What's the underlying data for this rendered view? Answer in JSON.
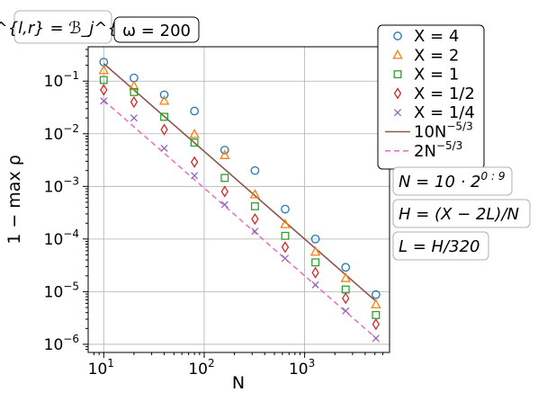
{
  "chart_data": {
    "type": "scatter",
    "xscale": "log",
    "yscale": "log",
    "xlim": [
      7,
      7000
    ],
    "ylim": [
      7e-07,
      0.45
    ],
    "grid": true,
    "xlabel": "N",
    "ylabel": "1 − max ρ",
    "x_ticks": [
      {
        "value": 10,
        "base": "10",
        "exp": "1"
      },
      {
        "value": 100,
        "base": "10",
        "exp": "2"
      },
      {
        "value": 1000,
        "base": "10",
        "exp": "3"
      }
    ],
    "y_ticks": [
      {
        "value": 1e-06,
        "base": "10",
        "exp": "−6"
      },
      {
        "value": 1e-05,
        "base": "10",
        "exp": "−5"
      },
      {
        "value": 0.0001,
        "base": "10",
        "exp": "−4"
      },
      {
        "value": 0.001,
        "base": "10",
        "exp": "−3"
      },
      {
        "value": 0.01,
        "base": "10",
        "exp": "−2"
      },
      {
        "value": 0.1,
        "base": "10",
        "exp": "−1"
      }
    ],
    "x": [
      10,
      20,
      40,
      80,
      160,
      320,
      640,
      1280,
      2560,
      5120
    ],
    "series": [
      {
        "name": "X = 4",
        "marker": "circle",
        "color": "#1f77b4",
        "values": [
          0.23,
          0.115,
          0.055,
          0.027,
          0.0049,
          0.002,
          0.00037,
          0.0001,
          2.9e-05,
          8.8e-06
        ]
      },
      {
        "name": "X = 2",
        "marker": "triangle",
        "color": "#ff7f0e",
        "values": [
          0.16,
          0.08,
          0.042,
          0.0098,
          0.0039,
          0.0007,
          0.00019,
          5.7e-05,
          1.8e-05,
          5.7e-06
        ]
      },
      {
        "name": "X = 1",
        "marker": "square",
        "color": "#2ca02c",
        "values": [
          0.105,
          0.062,
          0.021,
          0.0068,
          0.00145,
          0.00042,
          0.000115,
          3.6e-05,
          1.1e-05,
          3.6e-06
        ]
      },
      {
        "name": "X = 1/2",
        "marker": "diamond",
        "color": "#d62728",
        "values": [
          0.068,
          0.04,
          0.012,
          0.0029,
          0.0008,
          0.00024,
          7e-05,
          2.3e-05,
          7.5e-06,
          2.4e-06
        ]
      },
      {
        "name": "X = 1/4",
        "marker": "x",
        "color": "#9467bd",
        "values": [
          0.042,
          0.02,
          0.0053,
          0.0016,
          0.00045,
          0.00014,
          4.3e-05,
          1.35e-05,
          4.3e-06,
          1.3e-06
        ]
      }
    ],
    "lines": [
      {
        "name": "10N^(−5/3)",
        "coef": 10,
        "color": "#8c564b",
        "style": "solid"
      },
      {
        "name": "2N^(−5/3)",
        "coef": 2,
        "color": "#e377c2",
        "style": "dashed"
      }
    ],
    "legend": {
      "placement": "top-right",
      "entries": [
        {
          "pre": "X = 4",
          "sup": ""
        },
        {
          "pre": "X = 2",
          "sup": ""
        },
        {
          "pre": "X = 1",
          "sup": ""
        },
        {
          "pre": "X = 1/2",
          "sup": ""
        },
        {
          "pre": "X = 1/4",
          "sup": ""
        },
        {
          "pre": "10N",
          "sup": "−5/3"
        },
        {
          "pre": "2N",
          "sup": "−5/3"
        }
      ]
    },
    "annotations": {
      "top_left": "ℬ^{l,r} = ℬ_j^{l,r}",
      "top_mid": "ω = 200",
      "right": [
        {
          "text": "N = 10 · 2",
          "sup": "0 : 9"
        },
        {
          "text": "H = (X − 2L)/N",
          "sup": ""
        },
        {
          "text": "L = H/320",
          "sup": ""
        }
      ]
    }
  }
}
